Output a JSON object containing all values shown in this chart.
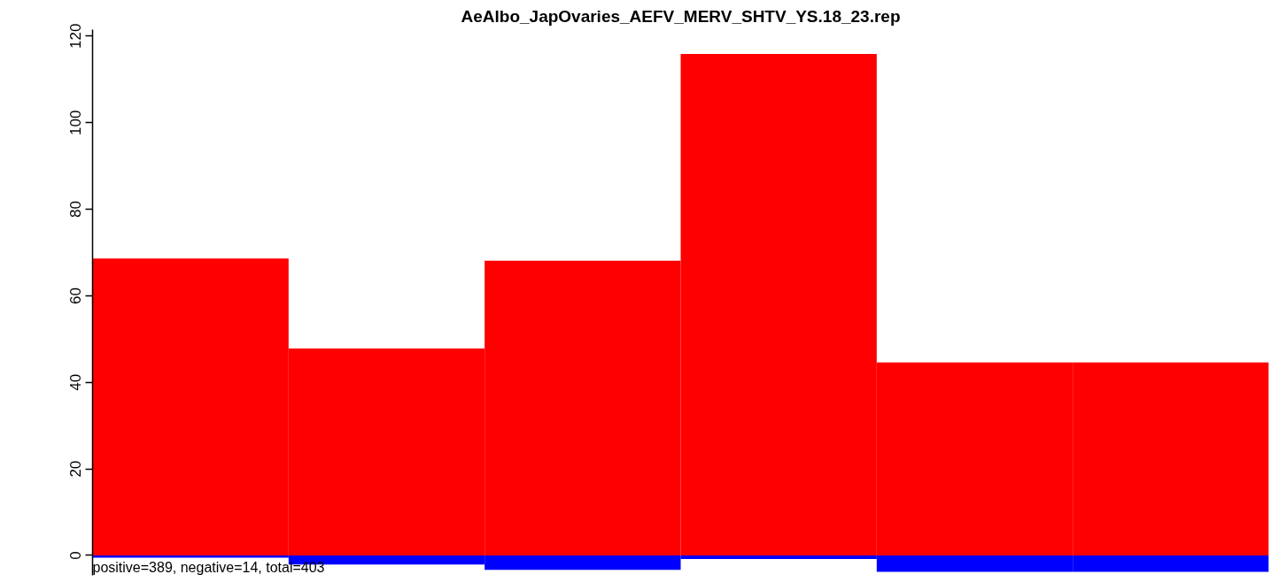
{
  "chart_data": {
    "type": "bar",
    "title": "AeAlbo_JapOvaries_AEFV_MERV_SHTV_YS.18_23.rep",
    "categories": [
      null,
      null,
      null,
      null,
      null,
      null
    ],
    "series": [
      {
        "color": "#ff0000",
        "values": [
          68.6,
          47.8,
          68.1,
          115.9,
          44.6,
          44.6
        ]
      },
      {
        "color": "#0000ff",
        "values": [
          -0.5,
          -2.1,
          -3.3,
          -0.8,
          -3.8,
          -3.8
        ]
      }
    ],
    "ylim": [
      -4.6,
      121.5
    ],
    "yticks": [
      0,
      20,
      40,
      60,
      80,
      100,
      120
    ],
    "stacked": true,
    "tick_labels": "y",
    "grid": false,
    "annotations": [
      "positive=389, negative=14, total=403"
    ]
  }
}
